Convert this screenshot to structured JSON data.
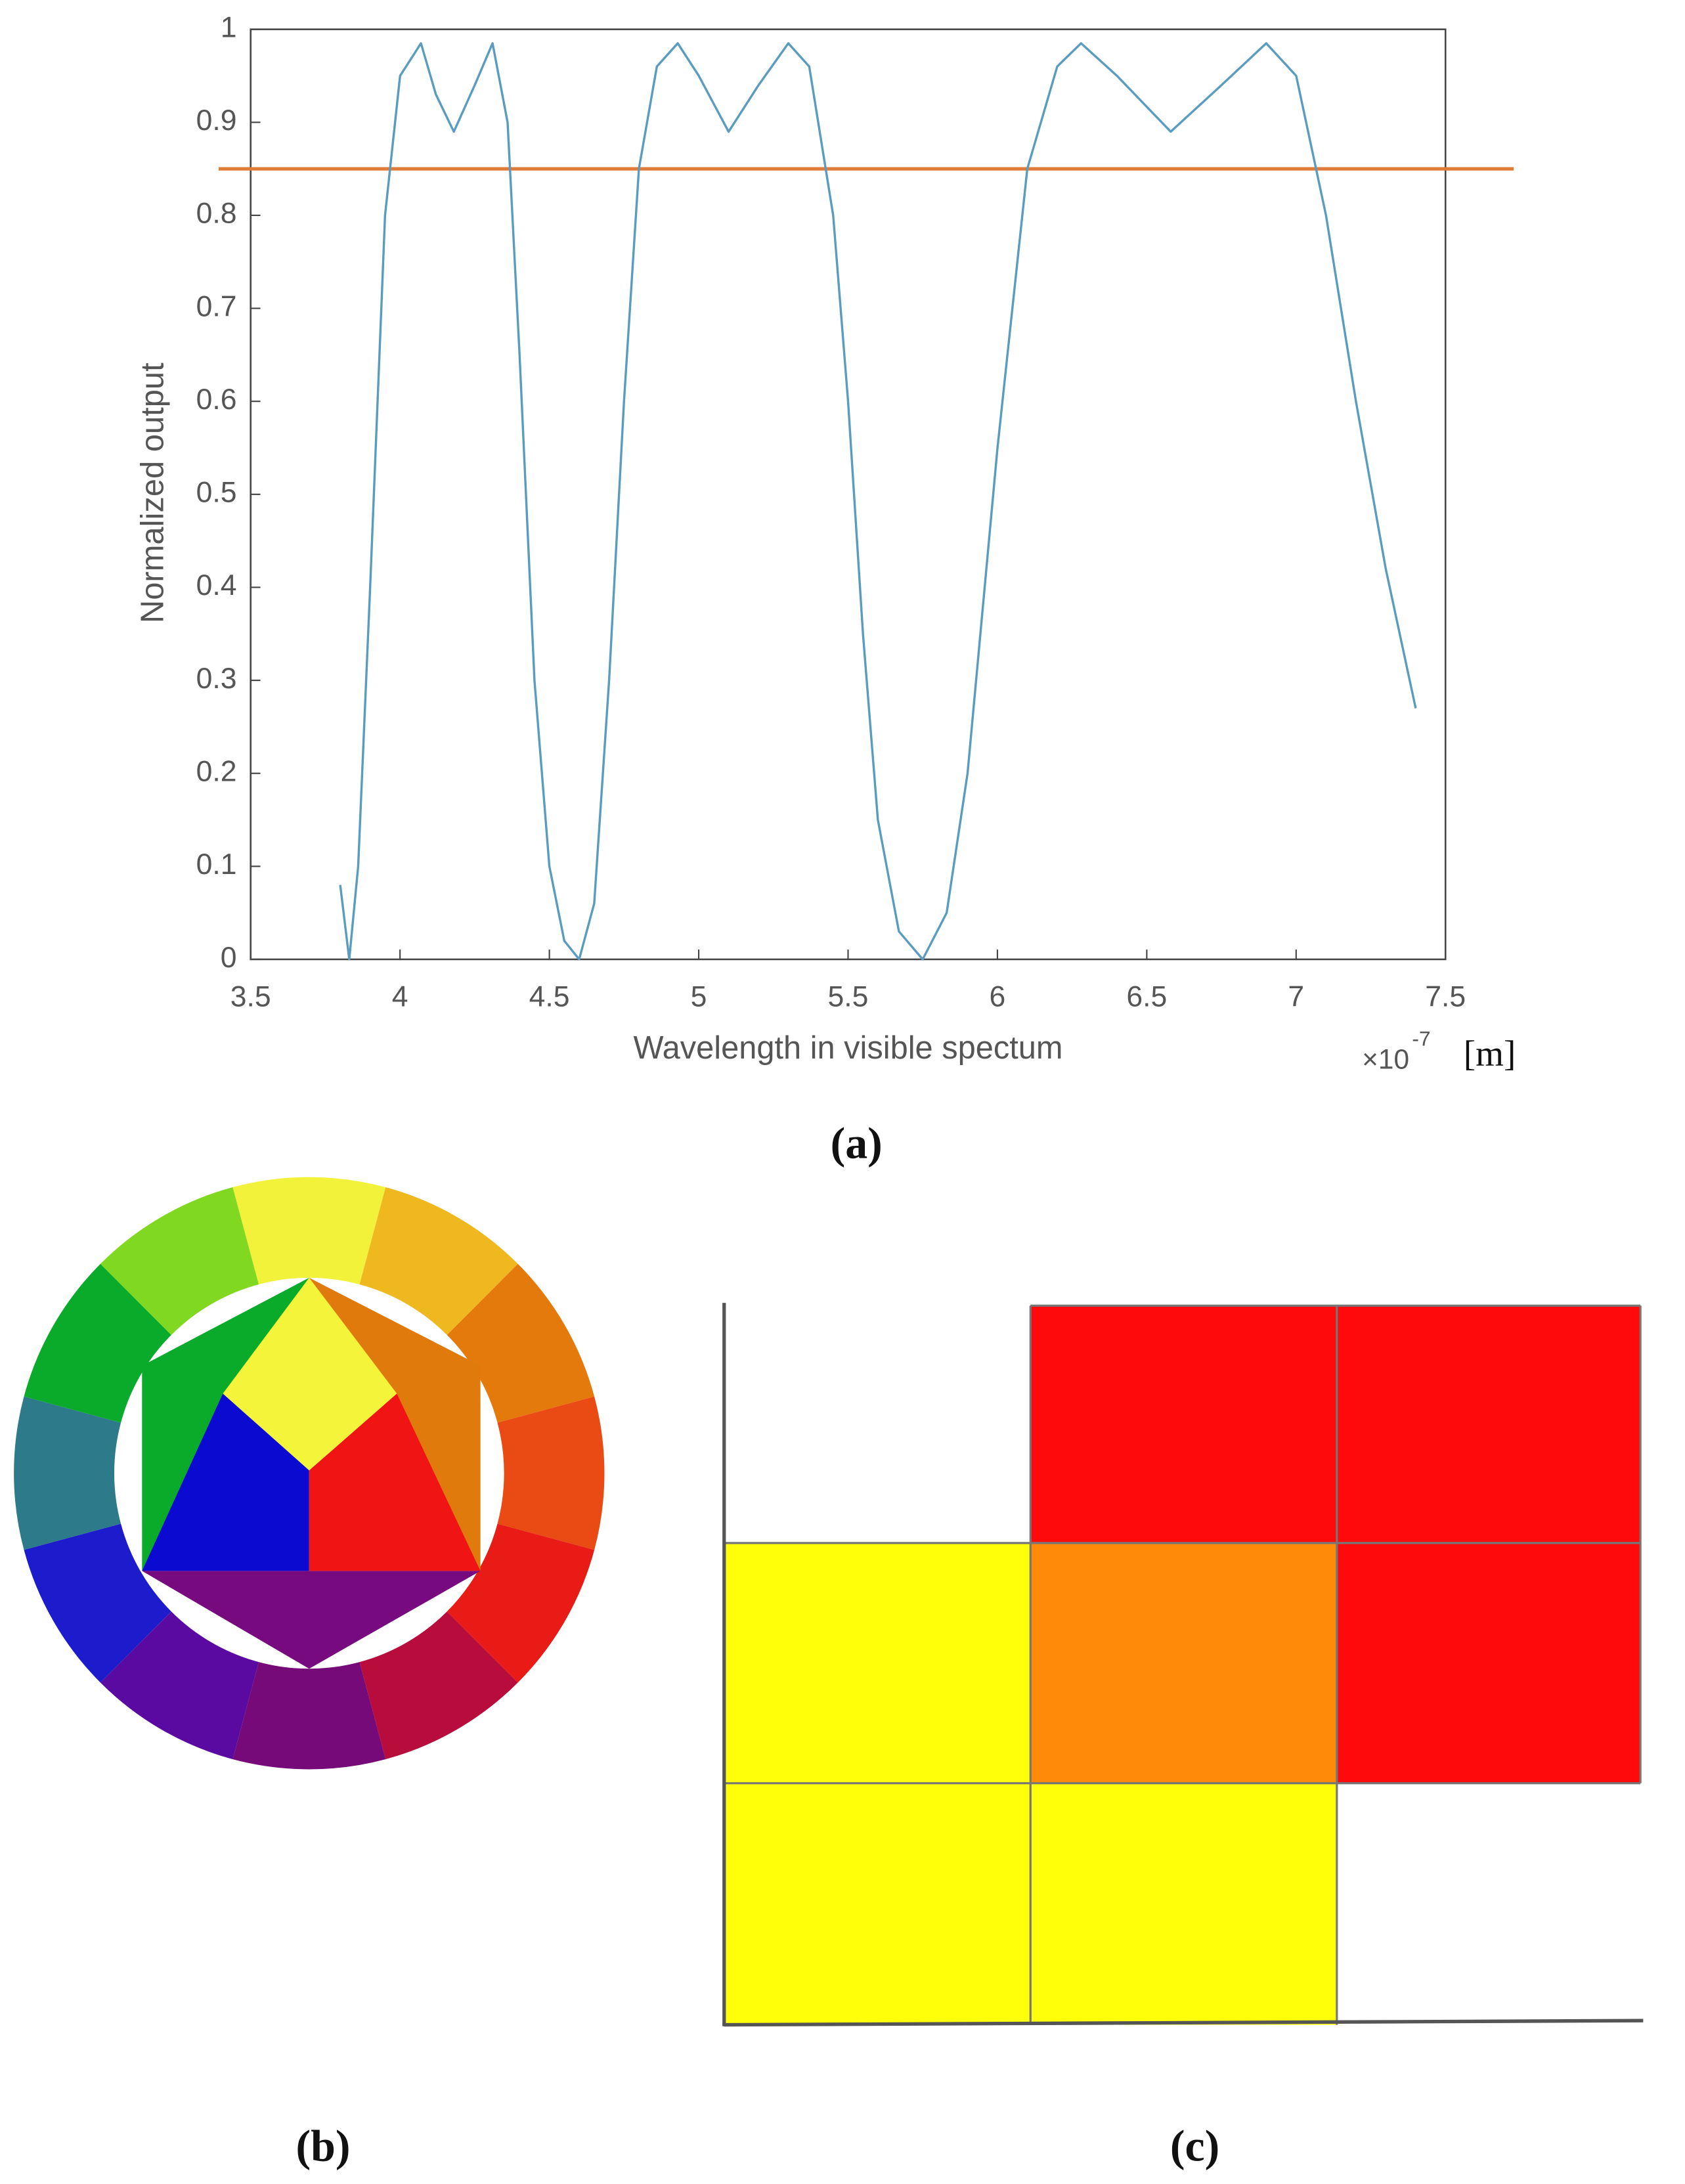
{
  "chart_data": {
    "type": "line",
    "xlabel": "Wavelength in visible spectum",
    "ylabel": "Normalized output",
    "x_multiplier": "×10",
    "x_exponent": "-7",
    "x_unit": "[m]",
    "x": [
      3.8,
      3.83,
      3.86,
      3.9,
      3.95,
      4.0,
      4.07,
      4.12,
      4.18,
      4.25,
      4.31,
      4.36,
      4.4,
      4.45,
      4.5,
      4.55,
      4.6,
      4.65,
      4.7,
      4.75,
      4.8,
      4.86,
      4.93,
      5.0,
      5.1,
      5.2,
      5.3,
      5.37,
      5.45,
      5.5,
      5.55,
      5.6,
      5.67,
      5.75,
      5.83,
      5.9,
      6.0,
      6.1,
      6.2,
      6.28,
      6.4,
      6.58,
      6.75,
      6.9,
      7.0,
      7.1,
      7.2,
      7.3,
      7.4
    ],
    "series": [
      {
        "color": "#5a9bc0",
        "values": [
          0.08,
          0.0,
          0.1,
          0.4,
          0.8,
          0.95,
          0.985,
          0.93,
          0.89,
          0.94,
          0.985,
          0.9,
          0.65,
          0.3,
          0.1,
          0.02,
          0.0,
          0.06,
          0.3,
          0.6,
          0.85,
          0.96,
          0.985,
          0.95,
          0.89,
          0.94,
          0.985,
          0.96,
          0.8,
          0.6,
          0.35,
          0.15,
          0.03,
          0.0,
          0.05,
          0.2,
          0.55,
          0.85,
          0.96,
          0.985,
          0.95,
          0.89,
          0.94,
          0.985,
          0.95,
          0.8,
          0.6,
          0.42,
          0.27
        ]
      }
    ],
    "hline": {
      "value": 0.85,
      "color": "#e07b39"
    },
    "xlim": [
      3.5,
      7.5
    ],
    "xticks": [
      3.5,
      4,
      4.5,
      5,
      5.5,
      6,
      6.5,
      7,
      7.5
    ],
    "ylim": [
      0,
      1
    ],
    "yticks": [
      0,
      0.1,
      0.2,
      0.3,
      0.4,
      0.5,
      0.6,
      0.7,
      0.8,
      0.9,
      1
    ]
  },
  "panels": {
    "a": "(a)",
    "b": "(b)",
    "c": "(c)"
  }
}
